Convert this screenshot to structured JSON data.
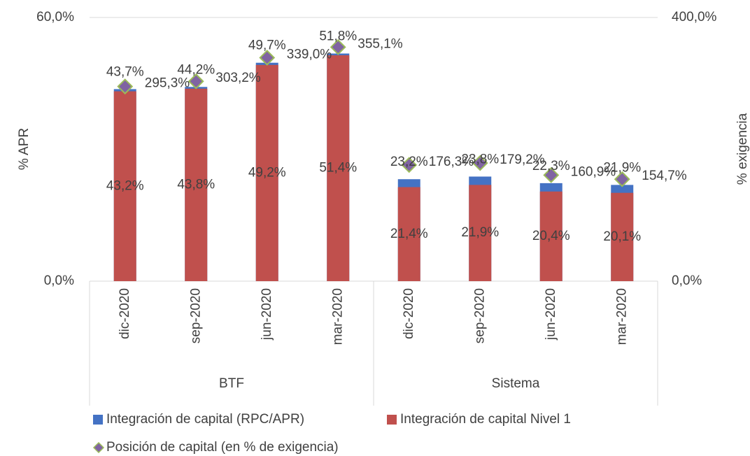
{
  "chart_data": {
    "type": "bar",
    "categories": [
      "dic-2020",
      "sep-2020",
      "jun-2020",
      "mar-2020",
      "dic-2020",
      "sep-2020",
      "jun-2020",
      "mar-2020"
    ],
    "group_labels": [
      "BTF",
      "Sistema"
    ],
    "ylabel": "% APR",
    "y2label": "% exigencia",
    "ylim": [
      0,
      60
    ],
    "yticks": [
      {
        "value": 0,
        "label": "0,0%"
      },
      {
        "value": 60,
        "label": "60,0%"
      }
    ],
    "y2lim": [
      0,
      400
    ],
    "y2ticks": [
      {
        "value": 0,
        "label": "0,0%"
      },
      {
        "value": 400,
        "label": "400,0%"
      }
    ],
    "grid": true,
    "series": [
      {
        "name": "Integración de capital (RPC/APR)",
        "color": "#4472c4",
        "marker": "bar",
        "values": [
          43.7,
          44.2,
          49.7,
          51.8,
          23.2,
          23.8,
          22.3,
          21.9
        ],
        "value_labels": [
          "43,7%",
          "44,2%",
          "49,7%",
          "51,8%",
          "23,2%",
          "23,8%",
          "22,3%",
          "21,9%"
        ]
      },
      {
        "name": "Integración de capital Nivel 1",
        "color": "#c0504d",
        "marker": "bar",
        "values": [
          43.2,
          43.8,
          49.2,
          51.4,
          21.4,
          21.9,
          20.4,
          20.1
        ],
        "value_labels": [
          "43,2%",
          "43,8%",
          "49,2%",
          "51,4%",
          "21,4%",
          "21,9%",
          "20,4%",
          "20,1%"
        ]
      },
      {
        "name": "Posición de capital (en % de exigencia)",
        "color": "#8064a2",
        "marker": "diamond",
        "axis": "y2",
        "values": [
          295.3,
          303.2,
          339.0,
          355.1,
          176.3,
          179.2,
          160.9,
          154.7
        ],
        "value_labels": [
          "295,3%",
          "303,2%",
          "339,0%",
          "355,1%",
          "176,3%",
          "179,2%",
          "160,9%",
          "154,7%"
        ]
      }
    ]
  }
}
